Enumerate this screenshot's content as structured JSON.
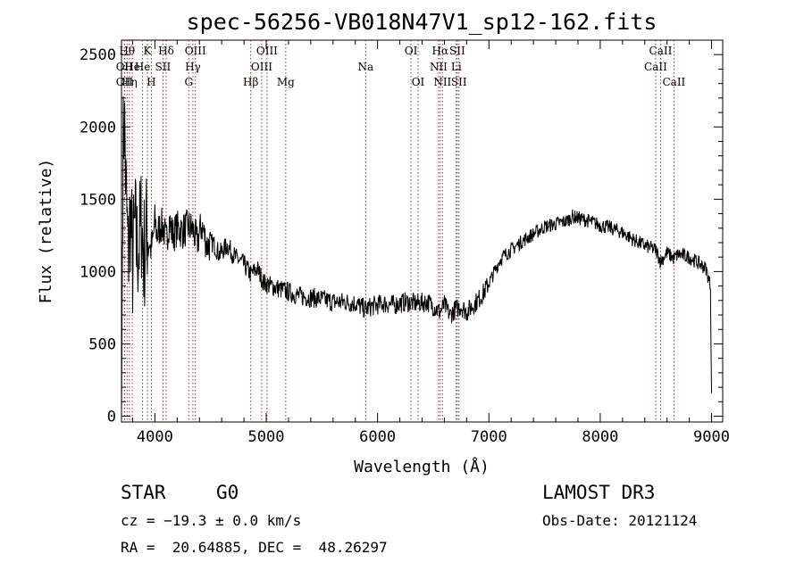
{
  "chart_data": {
    "type": "line",
    "title": "spec-56256-VB018N47V1_sp12-162.fits",
    "xlabel": "Wavelength (Å)",
    "ylabel": "Flux (relative)",
    "xlim": [
      3700,
      9100
    ],
    "ylim": [
      -40,
      2600
    ],
    "xticks": [
      4000,
      5000,
      6000,
      7000,
      8000,
      9000
    ],
    "yticks": [
      0,
      500,
      1000,
      1500,
      2000,
      2500
    ],
    "series": [
      {
        "name": "flux",
        "x": [
          3700,
          3712,
          3725,
          3740,
          3760,
          3780,
          3800,
          3820,
          3840,
          3860,
          3880,
          3900,
          3920,
          3940,
          3960,
          3980,
          4000,
          4020,
          4050,
          4080,
          4100,
          4130,
          4160,
          4200,
          4250,
          4300,
          4340,
          4380,
          4420,
          4470,
          4520,
          4580,
          4650,
          4720,
          4800,
          4860,
          4920,
          4980,
          5050,
          5120,
          5200,
          5300,
          5400,
          5500,
          5600,
          5700,
          5800,
          5890,
          5950,
          6050,
          6150,
          6250,
          6350,
          6450,
          6500,
          6560,
          6600,
          6650,
          6700,
          6750,
          6800,
          6850,
          6900,
          6950,
          7000,
          7050,
          7100,
          7150,
          7200,
          7300,
          7400,
          7500,
          7600,
          7700,
          7750,
          7800,
          7850,
          7900,
          8000,
          8100,
          8200,
          8300,
          8400,
          8500,
          8542,
          8600,
          8662,
          8700,
          8800,
          8900,
          8950,
          8990,
          9000
        ],
        "values": [
          0,
          1700,
          2100,
          1550,
          1100,
          1400,
          1050,
          1300,
          1150,
          1200,
          1350,
          1100,
          1250,
          1300,
          1150,
          1200,
          1350,
          1250,
          1320,
          1300,
          1200,
          1350,
          1250,
          1300,
          1280,
          1310,
          1290,
          1200,
          1320,
          1180,
          1200,
          1120,
          1180,
          1100,
          1050,
          980,
          1020,
          920,
          900,
          880,
          860,
          830,
          820,
          810,
          790,
          790,
          780,
          740,
          760,
          780,
          770,
          790,
          780,
          790,
          760,
          720,
          770,
          700,
          740,
          760,
          720,
          760,
          800,
          850,
          920,
          1000,
          1080,
          1120,
          1150,
          1210,
          1260,
          1310,
          1330,
          1350,
          1380,
          1370,
          1360,
          1350,
          1320,
          1300,
          1270,
          1220,
          1180,
          1150,
          1070,
          1130,
          1090,
          1120,
          1100,
          1050,
          1020,
          900,
          160
        ]
      }
    ],
    "lines": [
      {
        "wl": 3727,
        "row": 2,
        "label": "OII"
      },
      {
        "wl": 3727,
        "row": 1,
        "label": "OII"
      },
      {
        "wl": 3750,
        "row": 0,
        "label": "Hθ"
      },
      {
        "wl": 3771,
        "row": 2,
        "label": "Hη"
      },
      {
        "wl": 3797,
        "row": 1,
        "label": "He"
      },
      {
        "wl": 3889,
        "row": 1,
        "label": "He"
      },
      {
        "wl": 3933,
        "row": 0,
        "label": "K"
      },
      {
        "wl": 3968,
        "row": 2,
        "label": "H"
      },
      {
        "wl": 4072,
        "row": 1,
        "label": "SII"
      },
      {
        "wl": 4101,
        "row": 0,
        "label": "Hδ"
      },
      {
        "wl": 4304,
        "row": 2,
        "label": "G"
      },
      {
        "wl": 4341,
        "row": 1,
        "label": "Hγ"
      },
      {
        "wl": 4364,
        "row": 0,
        "label": "OIII"
      },
      {
        "wl": 4861,
        "row": 2,
        "label": "Hβ"
      },
      {
        "wl": 4959,
        "row": 1,
        "label": "OIII"
      },
      {
        "wl": 5007,
        "row": 0,
        "label": "OIII"
      },
      {
        "wl": 5175,
        "row": 2,
        "label": "Mg"
      },
      {
        "wl": 5893,
        "row": 1,
        "label": "Na"
      },
      {
        "wl": 6300,
        "row": 0,
        "label": "OI"
      },
      {
        "wl": 6364,
        "row": 2,
        "label": "OI"
      },
      {
        "wl": 6548,
        "row": 1,
        "label": "NII"
      },
      {
        "wl": 6563,
        "row": 0,
        "label": "Hα"
      },
      {
        "wl": 6583,
        "row": 2,
        "label": "NII"
      },
      {
        "wl": 6707,
        "row": 1,
        "label": "Li"
      },
      {
        "wl": 6716,
        "row": 0,
        "label": "SII"
      },
      {
        "wl": 6731,
        "row": 2,
        "label": "SII"
      },
      {
        "wl": 8498,
        "row": 1,
        "label": "CaII"
      },
      {
        "wl": 8542,
        "row": 0,
        "label": "CaII"
      },
      {
        "wl": 8662,
        "row": 2,
        "label": "CaII"
      }
    ]
  },
  "info": {
    "class_label": "STAR",
    "subclass": "G0",
    "survey": "LAMOST DR3",
    "cz": "cz = −19.3 ± 0.0 km/s",
    "obs_date": "Obs-Date: 20121124",
    "coords": "RA =  20.64885, DEC =  48.26297"
  }
}
